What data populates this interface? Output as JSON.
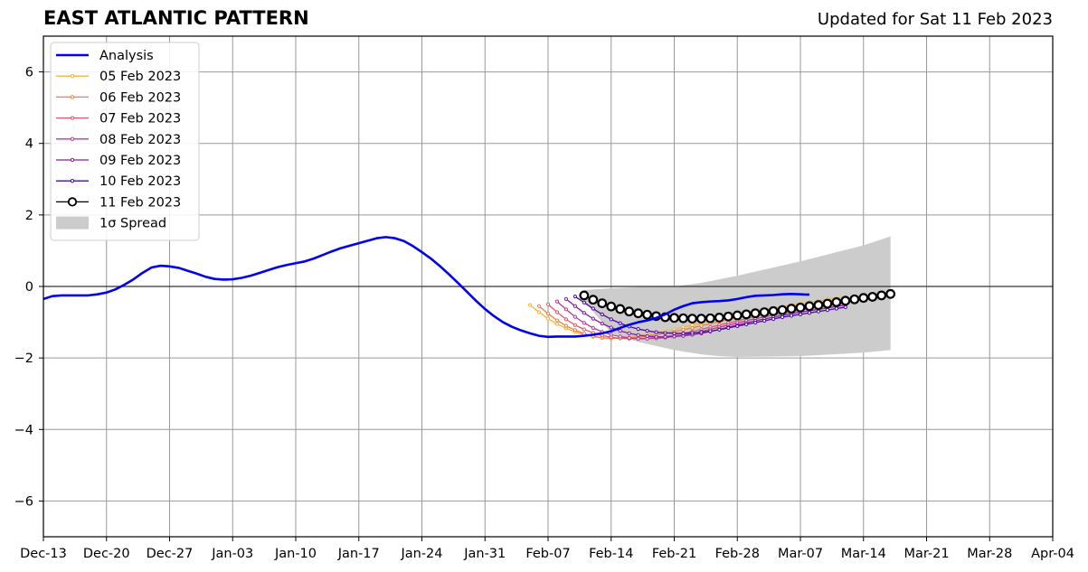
{
  "chart_data": {
    "type": "line",
    "title": "EAST ATLANTIC PATTERN",
    "subtitle": "Updated for Sat 11 Feb 2023",
    "xlabel": "",
    "ylabel": "",
    "xlim": [
      "2022-12-13",
      "2023-04-04"
    ],
    "ylim": [
      -7,
      7
    ],
    "yticks": [
      -6,
      -4,
      -2,
      0,
      2,
      4,
      6
    ],
    "ytick_labels": [
      "−6",
      "−4",
      "−2",
      "0",
      "2",
      "4",
      "6"
    ],
    "xticks": [
      "2022-12-13",
      "2022-12-20",
      "2022-12-27",
      "2023-01-03",
      "2023-01-10",
      "2023-01-17",
      "2023-01-24",
      "2023-01-31",
      "2023-02-07",
      "2023-02-14",
      "2023-02-21",
      "2023-02-28",
      "2023-03-07",
      "2023-03-14",
      "2023-03-21",
      "2023-03-28",
      "2023-04-04"
    ],
    "xtick_labels": [
      "Dec-13",
      "Dec-20",
      "Dec-27",
      "Jan-03",
      "Jan-10",
      "Jan-17",
      "Jan-24",
      "Jan-31",
      "Feb-07",
      "Feb-14",
      "Feb-21",
      "Feb-28",
      "Mar-07",
      "Mar-14",
      "Mar-21",
      "Mar-28",
      "Apr-04"
    ],
    "grid": true,
    "legend_position": "top-left",
    "analysis": {
      "name": "Analysis",
      "color": "#0000ee",
      "x_start": "2022-12-13",
      "values": [
        -0.35,
        -0.27,
        -0.25,
        -0.25,
        -0.25,
        -0.25,
        -0.22,
        -0.17,
        -0.08,
        0.05,
        0.2,
        0.38,
        0.53,
        0.58,
        0.56,
        0.52,
        0.44,
        0.36,
        0.27,
        0.21,
        0.19,
        0.2,
        0.24,
        0.3,
        0.38,
        0.46,
        0.54,
        0.6,
        0.65,
        0.7,
        0.78,
        0.88,
        0.98,
        1.07,
        1.14,
        1.21,
        1.28,
        1.35,
        1.38,
        1.35,
        1.27,
        1.13,
        0.96,
        0.78,
        0.57,
        0.34,
        0.1,
        -0.15,
        -0.4,
        -0.63,
        -0.83,
        -1.0,
        -1.13,
        -1.23,
        -1.31,
        -1.38,
        -1.41,
        -1.4,
        -1.4,
        -1.4,
        -1.38,
        -1.35,
        -1.31,
        -1.25,
        -1.16,
        -1.07,
        -1.0,
        -0.95,
        -0.88,
        -0.78,
        -0.65,
        -0.55,
        -0.47,
        -0.44,
        -0.42,
        -0.41,
        -0.39,
        -0.35,
        -0.3,
        -0.26,
        -0.25,
        -0.24,
        -0.22,
        -0.21,
        -0.22,
        -0.23
      ]
    },
    "forecasts": [
      {
        "name": "05 Feb 2023",
        "color": "#f5b43a",
        "x_start": "2023-02-05",
        "values": [
          -0.52,
          -0.72,
          -0.9,
          -1.05,
          -1.17,
          -1.27,
          -1.35,
          -1.41,
          -1.44,
          -1.45,
          -1.44,
          -1.42,
          -1.39,
          -1.35,
          -1.3,
          -1.25,
          -1.2,
          -1.14,
          -1.08,
          -1.02,
          -0.96,
          -0.9,
          -0.84,
          -0.79,
          -0.74,
          -0.69,
          -0.64,
          -0.6,
          -0.56,
          -0.52,
          -0.48,
          -0.44,
          -0.4,
          -0.36,
          -0.33,
          -0.3
        ]
      },
      {
        "name": "06 Feb 2023",
        "color": "#ee8040",
        "x_start": "2023-02-06",
        "values": [
          -0.55,
          -0.76,
          -0.95,
          -1.1,
          -1.22,
          -1.32,
          -1.39,
          -1.43,
          -1.45,
          -1.45,
          -1.44,
          -1.42,
          -1.39,
          -1.35,
          -1.31,
          -1.26,
          -1.21,
          -1.16,
          -1.1,
          -1.04,
          -0.98,
          -0.92,
          -0.86,
          -0.81,
          -0.76,
          -0.71,
          -0.66,
          -0.62,
          -0.58,
          -0.54,
          -0.5,
          -0.46,
          -0.42,
          -0.38,
          -0.35
        ]
      },
      {
        "name": "07 Feb 2023",
        "color": "#dd5a6e",
        "x_start": "2023-02-07",
        "values": [
          -0.5,
          -0.72,
          -0.92,
          -1.08,
          -1.2,
          -1.3,
          -1.37,
          -1.42,
          -1.45,
          -1.46,
          -1.46,
          -1.45,
          -1.43,
          -1.4,
          -1.36,
          -1.31,
          -1.26,
          -1.2,
          -1.14,
          -1.08,
          -1.02,
          -0.96,
          -0.9,
          -0.84,
          -0.79,
          -0.74,
          -0.69,
          -0.64,
          -0.6,
          -0.56,
          -0.52,
          -0.48,
          -0.44,
          -0.4
        ]
      },
      {
        "name": "08 Feb 2023",
        "color": "#b83c8c",
        "x_start": "2023-02-08",
        "values": [
          -0.42,
          -0.64,
          -0.85,
          -1.02,
          -1.16,
          -1.27,
          -1.35,
          -1.4,
          -1.44,
          -1.46,
          -1.46,
          -1.45,
          -1.43,
          -1.4,
          -1.36,
          -1.31,
          -1.26,
          -1.2,
          -1.14,
          -1.08,
          -1.02,
          -0.96,
          -0.9,
          -0.85,
          -0.8,
          -0.75,
          -0.7,
          -0.66,
          -0.62,
          -0.58,
          -0.54,
          -0.5,
          -0.46
        ]
      },
      {
        "name": "09 Feb 2023",
        "color": "#8a1aa8",
        "x_start": "2023-02-09",
        "values": [
          -0.35,
          -0.55,
          -0.74,
          -0.9,
          -1.04,
          -1.15,
          -1.24,
          -1.31,
          -1.36,
          -1.39,
          -1.41,
          -1.41,
          -1.4,
          -1.38,
          -1.35,
          -1.31,
          -1.26,
          -1.2,
          -1.14,
          -1.08,
          -1.02,
          -0.96,
          -0.91,
          -0.86,
          -0.81,
          -0.76,
          -0.72,
          -0.68,
          -0.64,
          -0.6,
          -0.56,
          -0.52
        ]
      },
      {
        "name": "10 Feb 2023",
        "color": "#4b0aa0",
        "x_start": "2023-02-10",
        "values": [
          -0.28,
          -0.45,
          -0.62,
          -0.78,
          -0.92,
          -1.03,
          -1.12,
          -1.19,
          -1.24,
          -1.28,
          -1.3,
          -1.31,
          -1.31,
          -1.3,
          -1.28,
          -1.25,
          -1.21,
          -1.16,
          -1.11,
          -1.06,
          -1.01,
          -0.96,
          -0.91,
          -0.86,
          -0.82,
          -0.78,
          -0.74,
          -0.7,
          -0.66,
          -0.62,
          -0.58
        ]
      },
      {
        "name": "11 Feb 2023",
        "color": "#000000",
        "x_start": "2023-02-11",
        "values": [
          -0.25,
          -0.37,
          -0.47,
          -0.56,
          -0.63,
          -0.7,
          -0.75,
          -0.79,
          -0.83,
          -0.86,
          -0.88,
          -0.89,
          -0.9,
          -0.9,
          -0.89,
          -0.87,
          -0.84,
          -0.81,
          -0.78,
          -0.75,
          -0.72,
          -0.69,
          -0.66,
          -0.62,
          -0.59,
          -0.55,
          -0.52,
          -0.48,
          -0.44,
          -0.4,
          -0.36,
          -0.32,
          -0.29,
          -0.25,
          -0.21
        ]
      }
    ],
    "spread": {
      "name": "1σ Spread",
      "color": "#cccccc",
      "x": [
        "2023-02-11",
        "2023-02-14",
        "2023-02-17",
        "2023-02-21",
        "2023-02-24",
        "2023-02-26",
        "2023-02-28",
        "2023-03-07",
        "2023-03-14",
        "2023-03-17"
      ],
      "upper": [
        -0.1,
        -0.05,
        -0.02,
        0.0,
        0.1,
        0.2,
        0.3,
        0.7,
        1.15,
        1.4
      ],
      "lower": [
        -0.4,
        -1.3,
        -1.55,
        -1.78,
        -1.9,
        -1.95,
        -1.97,
        -1.95,
        -1.85,
        -1.78
      ]
    }
  }
}
